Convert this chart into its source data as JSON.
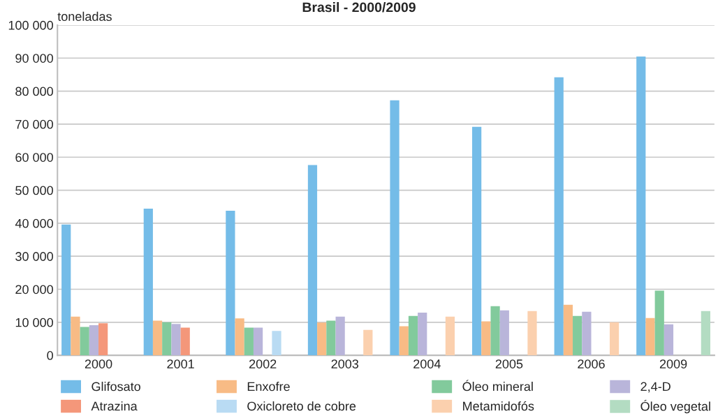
{
  "chart_data": {
    "type": "bar",
    "title": "Brasil - 2000/2009",
    "ylabel": "toneladas",
    "categories": [
      "2000",
      "2001",
      "2002",
      "2003",
      "2004",
      "2005",
      "2006",
      "2009"
    ],
    "series": [
      {
        "name": "Glifosato",
        "color": "#74bce8",
        "values": [
          39600,
          44400,
          43800,
          57600,
          77200,
          69200,
          84200,
          90500
        ]
      },
      {
        "name": "Enxofre",
        "color": "#f8bb85",
        "values": [
          11700,
          10500,
          11200,
          9900,
          8800,
          10300,
          15300,
          11300
        ]
      },
      {
        "name": "Óleo mineral",
        "color": "#82ca9c",
        "values": [
          8600,
          10000,
          8400,
          10500,
          11900,
          14900,
          11900,
          19600
        ]
      },
      {
        "name": "2,4-D",
        "color": "#b9b5da",
        "values": [
          9100,
          9500,
          8400,
          11700,
          12900,
          13600,
          13200,
          9400
        ]
      },
      {
        "name": "Atrazina",
        "color": "#f4977a",
        "values": [
          9700,
          8400,
          null,
          null,
          null,
          null,
          null,
          null
        ]
      },
      {
        "name": "Oxicloreto de cobre",
        "color": "#b9dbf3",
        "values": [
          null,
          null,
          7400,
          null,
          null,
          null,
          null,
          null
        ]
      },
      {
        "name": "Metamidofós",
        "color": "#fbd0ae",
        "values": [
          null,
          null,
          null,
          7700,
          11700,
          13400,
          10000,
          null
        ]
      },
      {
        "name": "Óleo vegetal",
        "color": "#b3dcc2",
        "values": [
          null,
          null,
          null,
          null,
          null,
          null,
          null,
          13400
        ]
      }
    ],
    "ylim": [
      0,
      100000
    ],
    "yticks": [
      0,
      {
        "value": 10000,
        "label": "10 000"
      },
      {
        "value": 20000,
        "label": "20 000"
      },
      {
        "value": 30000,
        "label": "30 000"
      },
      {
        "value": 40000,
        "label": "40 000"
      },
      {
        "value": 50000,
        "label": "50 000"
      },
      {
        "value": 60000,
        "label": "60 000"
      },
      {
        "value": 70000,
        "label": "70 000"
      },
      {
        "value": 80000,
        "label": "80 000"
      },
      {
        "value": 90000,
        "label": "90 000"
      },
      {
        "value": 100000,
        "label": "100 000"
      }
    ],
    "grid": "y",
    "legend": "bottom"
  }
}
